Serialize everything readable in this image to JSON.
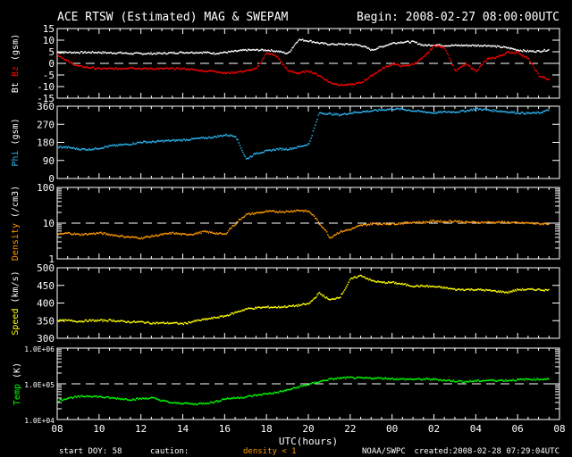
{
  "chart_data": {
    "type": "scatter",
    "title": "ACE RTSW (Estimated) MAG & SWEPAM",
    "begin": "Begin: 2008-02-27 08:00:00UTC",
    "xlabel": "UTC(hours)",
    "x_ticks": [
      "08",
      "10",
      "12",
      "14",
      "16",
      "18",
      "20",
      "22",
      "00",
      "02",
      "04",
      "06",
      "08"
    ],
    "xlim_hours": [
      0,
      24
    ],
    "x_hours": [
      0,
      0.5,
      1,
      1.5,
      2,
      2.5,
      3,
      3.5,
      4,
      4.5,
      5,
      5.5,
      6,
      6.5,
      7,
      7.5,
      8,
      8.5,
      9,
      9.5,
      10,
      10.5,
      11,
      11.5,
      12,
      12.5,
      13,
      13.5,
      14,
      14.5,
      15,
      15.5,
      16,
      16.5,
      17,
      17.5,
      18,
      18.5,
      19,
      19.5,
      20,
      20.5,
      21,
      21.5,
      22,
      22.5,
      23,
      23.5
    ],
    "panels": [
      {
        "ylabel_parts": [
          {
            "text": "Bt",
            "color": "#ffffff"
          },
          {
            "text": "Bz",
            "color": "#ff0000"
          },
          {
            "text": "(gsm)",
            "color": "#ffffff"
          }
        ],
        "scale": "linear",
        "ylim": [
          -15,
          15
        ],
        "y_ticks": [
          "15",
          "10",
          "5",
          "0",
          "-5",
          "-10",
          "-15"
        ],
        "y_tick_values": [
          15,
          10,
          5,
          0,
          -5,
          -10,
          -15
        ],
        "reference_line": 0,
        "series": [
          {
            "name": "Bt",
            "color": "#ffffff",
            "values": [
              5,
              5,
              5,
              5,
              5,
              4.8,
              4.8,
              4.5,
              4.5,
              4.5,
              4.6,
              4.8,
              5,
              5,
              5,
              4.6,
              5,
              5.5,
              6,
              6,
              6,
              5.5,
              4.5,
              10.5,
              10,
              9,
              8.5,
              8.5,
              8.5,
              8,
              6,
              7.5,
              9,
              9.5,
              9.5,
              8,
              8.3,
              8,
              8,
              8,
              8,
              8,
              7.5,
              7,
              6,
              5.5,
              5.5,
              6.2
            ]
          },
          {
            "name": "Bz",
            "color": "#ff0000",
            "values": [
              4,
              1,
              -1,
              -1.5,
              -2,
              -2,
              -2,
              -1.5,
              -2,
              -2,
              -2,
              -2,
              -2,
              -2.5,
              -3,
              -3,
              -4,
              -3.5,
              -3,
              -2,
              5,
              3,
              -3,
              -4,
              -3,
              -5,
              -8,
              -9,
              -9,
              -8,
              -5,
              -2,
              0,
              -1,
              0,
              3,
              8,
              7,
              -3,
              0,
              -3,
              2,
              3,
              5,
              5,
              2,
              -5,
              -7
            ]
          }
        ]
      },
      {
        "ylabel_parts": [
          {
            "text": "Phi",
            "color": "#2ab4f0"
          },
          {
            "text": "(gsm)",
            "color": "#ffffff"
          }
        ],
        "scale": "linear",
        "ylim": [
          0,
          360
        ],
        "y_ticks": [
          "360",
          "270",
          "180",
          "90",
          "0"
        ],
        "y_tick_values": [
          360,
          270,
          180,
          90,
          0
        ],
        "series": [
          {
            "name": "Phi",
            "color": "#2ab4f0",
            "values": [
              160,
              158,
              150,
              148,
              155,
              165,
              170,
              175,
              185,
              185,
              190,
              192,
              195,
              200,
              205,
              210,
              220,
              215,
              100,
              130,
              140,
              150,
              150,
              160,
              175,
              330,
              325,
              320,
              330,
              335,
              340,
              345,
              350,
              348,
              340,
              335,
              330,
              335,
              335,
              340,
              350,
              345,
              340,
              335,
              330,
              328,
              330,
              345
            ]
          }
        ]
      },
      {
        "ylabel_parts": [
          {
            "text": "Density",
            "color": "#ff9900"
          },
          {
            "text": "(/cm3)",
            "color": "#ffffff"
          }
        ],
        "scale": "log",
        "ylim": [
          1,
          100
        ],
        "y_ticks": [
          "100",
          "10",
          "1"
        ],
        "y_tick_values": [
          100,
          10,
          1
        ],
        "reference_line": 10,
        "series": [
          {
            "name": "Density",
            "color": "#ff9900",
            "values": [
              5,
              5.5,
              5,
              5.2,
              5.5,
              5,
              4.5,
              4.2,
              4,
              4.5,
              5,
              5.5,
              5,
              5.2,
              6,
              5.5,
              5,
              10,
              18,
              20,
              22,
              22,
              22,
              24,
              22,
              10,
              4,
              6,
              7,
              9,
              10,
              10,
              10,
              10.5,
              11,
              11,
              12,
              11.5,
              12,
              11,
              11,
              11,
              11,
              11,
              10.5,
              10.5,
              10,
              10
            ]
          }
        ]
      },
      {
        "ylabel_parts": [
          {
            "text": "Speed",
            "color": "#ffff00"
          },
          {
            "text": "(km/s)",
            "color": "#ffffff"
          }
        ],
        "scale": "linear",
        "ylim": [
          300,
          500
        ],
        "y_ticks": [
          "500",
          "450",
          "400",
          "350",
          "300"
        ],
        "y_tick_values": [
          500,
          450,
          400,
          350,
          300
        ],
        "series": [
          {
            "name": "Speed",
            "color": "#ffff00",
            "values": [
              352,
              352,
              350,
              352,
              352,
              353,
              350,
              348,
              348,
              345,
              345,
              345,
              343,
              350,
              355,
              360,
              365,
              375,
              385,
              388,
              390,
              390,
              392,
              395,
              400,
              430,
              410,
              420,
              470,
              480,
              465,
              460,
              460,
              455,
              450,
              450,
              448,
              445,
              440,
              440,
              440,
              438,
              435,
              432,
              440,
              440,
              440,
              438
            ]
          }
        ]
      },
      {
        "ylabel_parts": [
          {
            "text": "Temp",
            "color": "#00ff00"
          },
          {
            "text": "(K)",
            "color": "#ffffff"
          }
        ],
        "scale": "log",
        "ylim": [
          10000,
          1000000
        ],
        "y_ticks": [
          "1.0E+06",
          "1.0E+05",
          "1.0E+04"
        ],
        "y_tick_values": [
          1000000,
          100000,
          10000
        ],
        "reference_line": 100000,
        "series": [
          {
            "name": "Temp",
            "color": "#00ff00",
            "values": [
              35000,
              42000,
              45000,
              48000,
              45000,
              42000,
              40000,
              38000,
              40000,
              42000,
              35000,
              30000,
              30000,
              28000,
              30000,
              32000,
              40000,
              42000,
              45000,
              50000,
              55000,
              60000,
              70000,
              85000,
              100000,
              120000,
              140000,
              150000,
              155000,
              150000,
              150000,
              150000,
              145000,
              140000,
              140000,
              140000,
              140000,
              130000,
              125000,
              120000,
              125000,
              130000,
              130000,
              130000,
              135000,
              140000,
              140000,
              145000
            ]
          }
        ]
      }
    ]
  },
  "footer": {
    "start_doy": "start DOY:  58",
    "caution": "caution:",
    "density_caution": "density < 1",
    "agency": "NOAA/SWPC",
    "created": "created:2008-02-28 07:29:04UTC"
  },
  "colors": {
    "background": "#000000",
    "axes": "#ffffff",
    "caution": "#ff9900"
  }
}
